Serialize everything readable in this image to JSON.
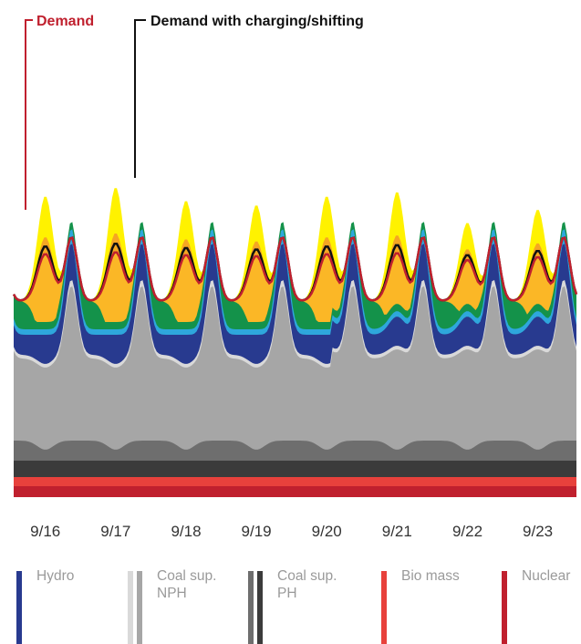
{
  "chart_data": {
    "type": "area",
    "stacked": true,
    "x_ticks": [
      "9/16",
      "9/17",
      "9/18",
      "9/19",
      "9/20",
      "9/21",
      "9/22",
      "9/23"
    ],
    "annotations": {
      "demand": "Demand",
      "demand_shifted": "Demand with charging/shifting"
    },
    "series": [
      {
        "name": "Nuclear",
        "color": "#c0202e"
      },
      {
        "name": "Bio mass",
        "color": "#e8413c"
      },
      {
        "name": "Coal sup. PH",
        "color": "#3b3b3b"
      },
      {
        "name": "Coal sup. PH",
        "color": "#6e6e6e"
      },
      {
        "name": "Coal sup. NPH",
        "color": "#a6a6a6"
      },
      {
        "name": "Coal sup. NPH",
        "color": "#d9d9d9"
      },
      {
        "name": "Hydro",
        "color": "#283a8f"
      },
      {
        "color": "#2ea7dc"
      },
      {
        "color": "#14924a"
      },
      {
        "color": "#fbb726"
      },
      {
        "color": "#f5a623"
      },
      {
        "color": "#fff200"
      }
    ],
    "demand_color": "#c0202e",
    "demand_shifted_color": "#111111"
  },
  "legend": {
    "items": [
      {
        "label": "Hydro",
        "colors": [
          "#283a8f"
        ]
      },
      {
        "label": "Coal sup.\nNPH",
        "colors": [
          "#d9d9d9",
          "#a6a6a6"
        ]
      },
      {
        "label": "Coal sup.\nPH",
        "colors": [
          "#6e6e6e",
          "#3b3b3b"
        ]
      },
      {
        "label": "Bio mass",
        "colors": [
          "#e8413c"
        ]
      },
      {
        "label": "Nuclear",
        "colors": [
          "#c0202e"
        ]
      }
    ]
  }
}
